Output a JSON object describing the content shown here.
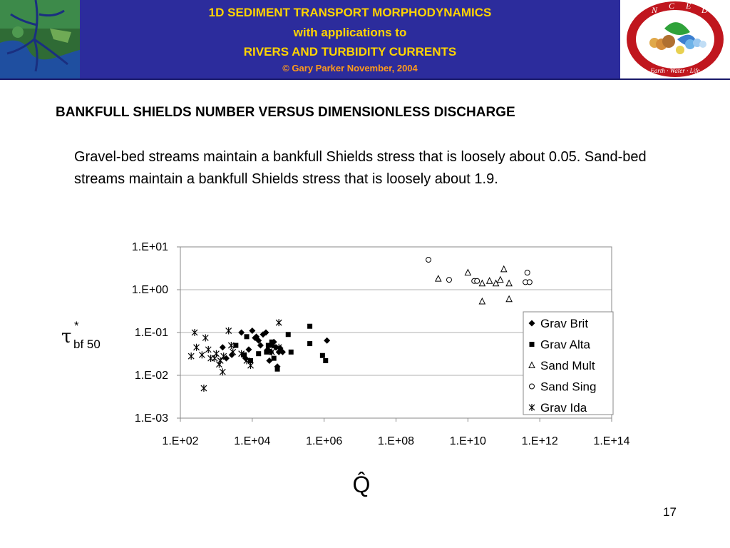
{
  "header": {
    "line1": "1D SEDIMENT TRANSPORT MORPHODYNAMICS",
    "line2": "with applications to",
    "line3": "RIVERS AND TURBIDITY CURRENTS",
    "line4": "© Gary Parker November, 2004",
    "logo_letters": [
      "N",
      "C",
      "E",
      "D"
    ],
    "logo_motto": "Earth · Water · Life",
    "colors": {
      "banner": "#2c2c9c",
      "title_text": "#ffd400",
      "copyright_text": "#ff9a1a",
      "logo_ring": "#c0161e"
    }
  },
  "slide": {
    "title": "BANKFULL SHIELDS NUMBER VERSUS DIMENSIONLESS DISCHARGE",
    "body": "Gravel-bed streams maintain a bankfull Shields stress that is loosely about 0.05.  Sand-bed streams maintain a bankfull Shields stress that is loosely about 1.9.",
    "number": "17"
  },
  "chart_data": {
    "type": "scatter",
    "x_scale": "log",
    "y_scale": "log",
    "xlim": [
      100,
      100000000000000
    ],
    "ylim": [
      0.001,
      10
    ],
    "x_ticks": [
      "1.E+02",
      "1.E+04",
      "1.E+06",
      "1.E+08",
      "1.E+10",
      "1.E+12",
      "1.E+14"
    ],
    "y_ticks": [
      "1.E-03",
      "1.E-02",
      "1.E-01",
      "1.E+00",
      "1.E+01"
    ],
    "xlabel": "Q̂",
    "ylabel": {
      "main": "τ",
      "sup": "*",
      "sub": "bf 50"
    },
    "grid": "horizontal",
    "legend_position": "right",
    "series": [
      {
        "name": "Grav Brit",
        "marker": "diamond",
        "points": [
          [
            1500,
            0.045
          ],
          [
            1900,
            0.025
          ],
          [
            2700,
            0.03
          ],
          [
            5000,
            0.1
          ],
          [
            6500,
            0.025
          ],
          [
            8000,
            0.04
          ],
          [
            10000,
            0.11
          ],
          [
            12000,
            0.075
          ],
          [
            13000,
            0.08
          ],
          [
            15000,
            0.065
          ],
          [
            17000,
            0.05
          ],
          [
            20000,
            0.09
          ],
          [
            24000,
            0.1
          ],
          [
            27000,
            0.04
          ],
          [
            30000,
            0.022
          ],
          [
            33000,
            0.035
          ],
          [
            36000,
            0.05
          ],
          [
            40000,
            0.06
          ],
          [
            45000,
            0.045
          ],
          [
            50000,
            0.016
          ],
          [
            55000,
            0.035
          ],
          [
            60000,
            0.043
          ],
          [
            70000,
            0.035
          ],
          [
            1200000,
            0.065
          ]
        ]
      },
      {
        "name": "Grav Alta",
        "marker": "square",
        "points": [
          [
            3500,
            0.05
          ],
          [
            6000,
            0.03
          ],
          [
            7000,
            0.08
          ],
          [
            9000,
            0.022
          ],
          [
            15000,
            0.032
          ],
          [
            25000,
            0.035
          ],
          [
            28000,
            0.05
          ],
          [
            35000,
            0.06
          ],
          [
            40000,
            0.025
          ],
          [
            50000,
            0.014
          ],
          [
            100000,
            0.09
          ],
          [
            120000,
            0.035
          ],
          [
            400000,
            0.14
          ],
          [
            400000,
            0.055
          ],
          [
            900000,
            0.029
          ],
          [
            1100000,
            0.022
          ]
        ]
      },
      {
        "name": "Sand Mult",
        "marker": "triangle",
        "points": [
          [
            1500000000,
            1.8
          ],
          [
            10000000000,
            2.5
          ],
          [
            25000000000,
            1.4
          ],
          [
            40000000000,
            1.6
          ],
          [
            60000000000,
            1.4
          ],
          [
            80000000000,
            1.7
          ],
          [
            100000000000,
            3
          ],
          [
            25000000000,
            0.53
          ],
          [
            140000000000,
            1.4
          ],
          [
            140000000000,
            0.6
          ]
        ]
      },
      {
        "name": "Sand Sing",
        "marker": "circle",
        "points": [
          [
            800000000,
            5
          ],
          [
            3000000000,
            1.7
          ],
          [
            15000000000,
            1.6
          ],
          [
            18000000000,
            1.6
          ],
          [
            450000000000,
            2.5
          ],
          [
            400000000000,
            1.5
          ],
          [
            520000000000,
            1.5
          ]
        ]
      },
      {
        "name": "Grav Ida",
        "marker": "star",
        "points": [
          [
            200,
            0.028
          ],
          [
            250,
            0.1
          ],
          [
            280,
            0.045
          ],
          [
            400,
            0.03
          ],
          [
            450,
            0.005
          ],
          [
            500,
            0.075
          ],
          [
            600,
            0.04
          ],
          [
            700,
            0.025
          ],
          [
            900,
            0.025
          ],
          [
            1000,
            0.032
          ],
          [
            1200,
            0.018
          ],
          [
            1300,
            0.022
          ],
          [
            1500,
            0.012
          ],
          [
            1600,
            0.028
          ],
          [
            2200,
            0.11
          ],
          [
            2600,
            0.05
          ],
          [
            2900,
            0.035
          ],
          [
            5000,
            0.032
          ],
          [
            7000,
            0.022
          ],
          [
            9000,
            0.017
          ],
          [
            35000,
            0.035
          ],
          [
            55000,
            0.045
          ],
          [
            55000,
            0.17
          ]
        ]
      }
    ]
  }
}
